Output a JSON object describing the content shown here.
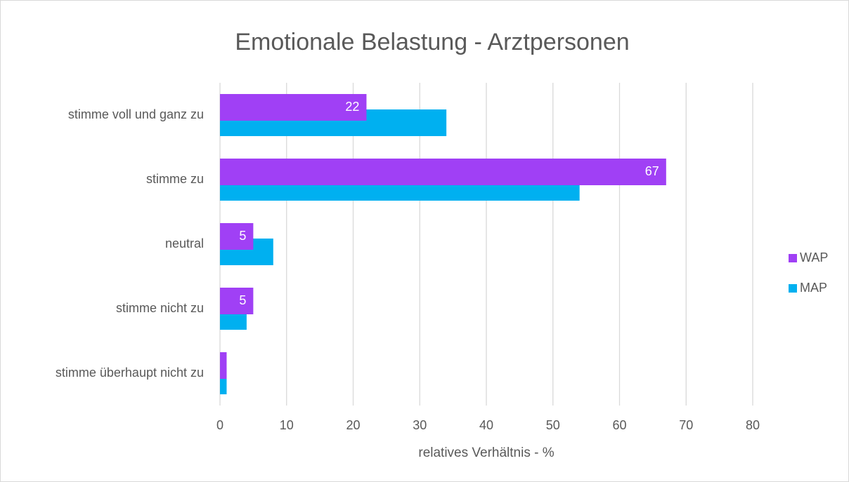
{
  "chart_data": {
    "type": "bar",
    "orientation": "horizontal",
    "title": "Emotionale Belastung - Arztpersonen",
    "xlabel": "relatives Verhältnis - %",
    "categories": [
      "stimme voll und ganz zu",
      "stimme zu",
      "neutral",
      "stimme nicht zu",
      "stimme überhaupt nicht zu"
    ],
    "series": [
      {
        "name": "WAP",
        "color": "#a040f5",
        "values": [
          22,
          67,
          5,
          5,
          1
        ],
        "value_labels": [
          "22",
          "67",
          "5",
          "5",
          null
        ]
      },
      {
        "name": "MAP",
        "color": "#00b0f0",
        "values": [
          34,
          54,
          8,
          4,
          1
        ]
      }
    ],
    "xlim": [
      0,
      80
    ],
    "xticks": [
      0,
      10,
      20,
      30,
      40,
      50,
      60,
      70,
      80
    ],
    "grid": true,
    "legend": "right"
  }
}
